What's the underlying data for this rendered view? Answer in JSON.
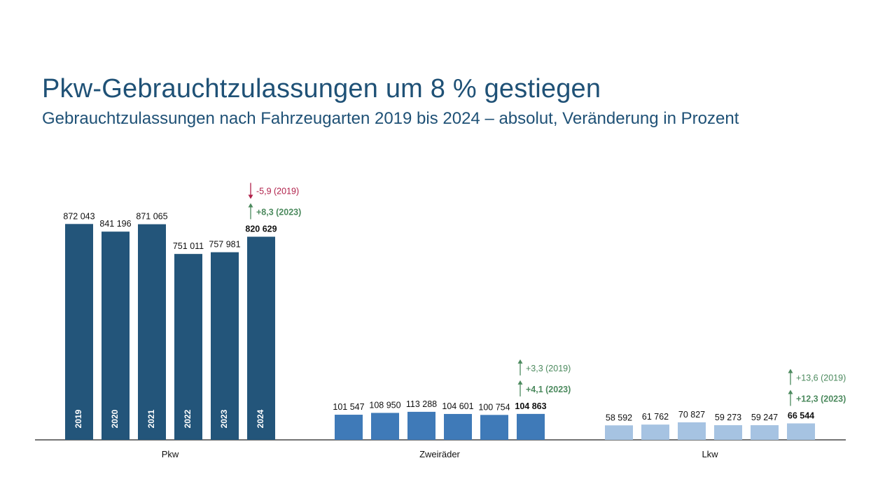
{
  "title": "Pkw-Gebrauchtzulassungen um 8 % gestiegen",
  "subtitle": "Gebrauchtzulassungen nach Fahrzeugarten 2019 bis 2024 – absolut, Veränderung in Prozent",
  "chart_data": {
    "type": "bar",
    "ylim": [
      0,
      1000000
    ],
    "years": [
      "2019",
      "2020",
      "2021",
      "2022",
      "2023",
      "2024"
    ],
    "groups": [
      {
        "name": "Pkw",
        "color": "#23557a",
        "values": [
          872043,
          841196,
          871065,
          751011,
          757981,
          820629
        ],
        "labels": [
          "872 043",
          "841 196",
          "871 065",
          "751 011",
          "757 981",
          "820 629"
        ],
        "changes": [
          {
            "text": "-5,9 (2019)",
            "direction": "down",
            "color": "#b0204a",
            "bold": false
          },
          {
            "text": "+8,3 (2023)",
            "direction": "up",
            "color": "#4c8a5e",
            "bold": true
          }
        ]
      },
      {
        "name": "Zweiräder",
        "color": "#3f7ab8",
        "values": [
          101547,
          108950,
          113288,
          104601,
          100754,
          104863
        ],
        "labels": [
          "101 547",
          "108 950",
          "113 288",
          "104 601",
          "100 754",
          "104 863"
        ],
        "changes": [
          {
            "text": "+3,3 (2019)",
            "direction": "up",
            "color": "#4c8a5e",
            "bold": false
          },
          {
            "text": "+4,1 (2023)",
            "direction": "up",
            "color": "#4c8a5e",
            "bold": true
          }
        ]
      },
      {
        "name": "Lkw",
        "color": "#a6c3e2",
        "values": [
          58592,
          61762,
          70827,
          59273,
          59247,
          66544
        ],
        "labels": [
          "58 592",
          "61 762",
          "70 827",
          "59 273",
          "59 247",
          "66 544"
        ],
        "changes": [
          {
            "text": "+13,6 (2019)",
            "direction": "up",
            "color": "#4c8a5e",
            "bold": false
          },
          {
            "text": "+12,3 (2023)",
            "direction": "up",
            "color": "#4c8a5e",
            "bold": true
          }
        ]
      }
    ]
  }
}
